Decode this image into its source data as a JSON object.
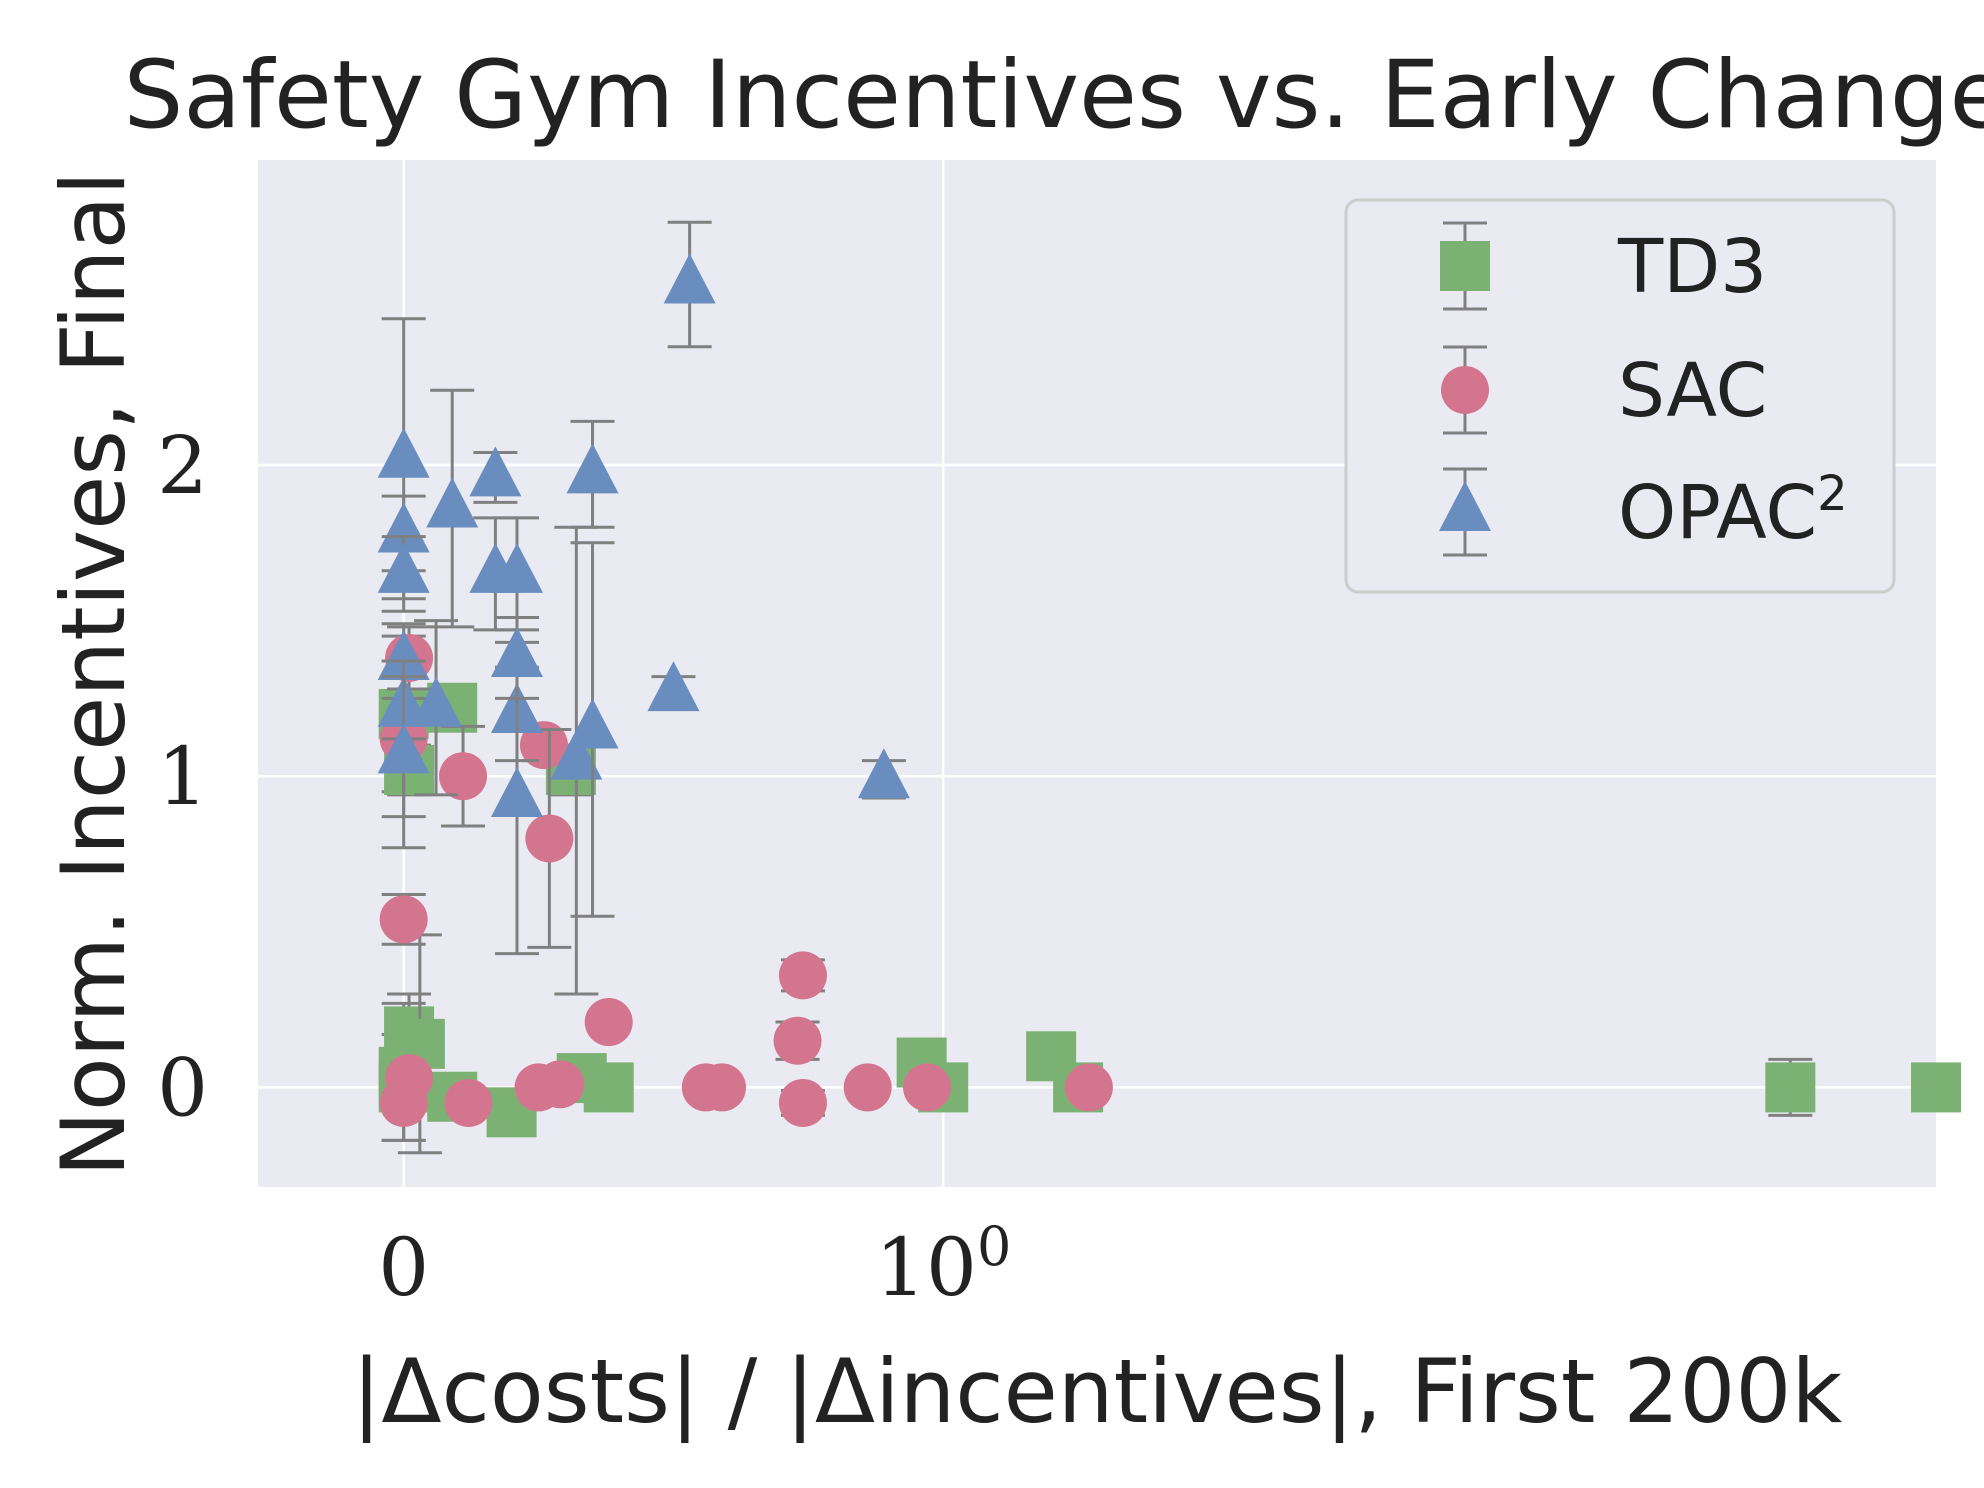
{
  "chart_data": {
    "type": "scatter",
    "title": "Safety Gym Incentives vs. Early Changes",
    "xlabel": "|Δcosts| / |Δincentives|, First 200k",
    "ylabel": "Norm. Incentives, Final",
    "xscale": "symlog",
    "xlim": [
      -0.27,
      2.84
    ],
    "ylim": [
      -0.32,
      2.98
    ],
    "x_ticks": [
      0,
      1
    ],
    "x_tick_labels": [
      "0",
      "10"
    ],
    "x_tick_superscripts": [
      "",
      "0"
    ],
    "y_ticks": [
      0,
      1,
      2
    ],
    "y_tick_labels": [
      "0",
      "1",
      "2"
    ],
    "grid": true,
    "legend": {
      "position": "top-right",
      "entries": [
        {
          "label": "TD3",
          "marker": "square",
          "color": "#7bb274"
        },
        {
          "label": "SAC",
          "marker": "circle",
          "color": "#d4758f"
        },
        {
          "label": "OPAC",
          "superscript": "2",
          "marker": "triangle",
          "color": "#6a8dbf"
        }
      ]
    },
    "colors": {
      "background": "#eaeaf2",
      "grid": "#ffffff",
      "errorbar": "#808080",
      "text": "#222222"
    },
    "series": [
      {
        "name": "TD3",
        "marker": "square",
        "color": "#7bb274",
        "points": [
          {
            "x": 0.0,
            "y": 0.0,
            "err": 0.17
          },
          {
            "x": 0.0,
            "y": 0.05,
            "err": 0.22
          },
          {
            "x": 0.01,
            "y": 0.18,
            "err": 0.12
          },
          {
            "x": 0.03,
            "y": 0.14,
            "err": 0.35
          },
          {
            "x": 0.0,
            "y": 1.2,
            "err": 0.25
          },
          {
            "x": 0.01,
            "y": 1.02,
            "err": 0.08
          },
          {
            "x": 0.09,
            "y": 1.22,
            "err": 0.05
          },
          {
            "x": 0.09,
            "y": -0.03,
            "err": 0.02
          },
          {
            "x": 0.2,
            "y": -0.08,
            "err": 0.04
          },
          {
            "x": 0.31,
            "y": 1.02,
            "err": 0.08
          },
          {
            "x": 0.33,
            "y": 0.03,
            "err": 0.04
          },
          {
            "x": 0.38,
            "y": 0.0,
            "err": 0.02
          },
          {
            "x": 0.96,
            "y": 0.08,
            "err": 0.03
          },
          {
            "x": 1.0,
            "y": 0.0,
            "err": 0.02
          },
          {
            "x": 1.2,
            "y": 0.1,
            "err": 0.07
          },
          {
            "x": 1.25,
            "y": 0.0,
            "err": 0.05
          },
          {
            "x": 2.57,
            "y": 0.0,
            "err": 0.09
          },
          {
            "x": 2.84,
            "y": 0.0,
            "err": 0.02
          }
        ]
      },
      {
        "name": "SAC",
        "marker": "circle",
        "color": "#d4758f",
        "points": [
          {
            "x": 0.0,
            "y": -0.05,
            "err": 0.02
          },
          {
            "x": 0.01,
            "y": 0.03,
            "err": 0.02
          },
          {
            "x": 0.0,
            "y": 0.54,
            "err": 0.08
          },
          {
            "x": 0.0,
            "y": 1.12,
            "err": 0.25
          },
          {
            "x": 0.01,
            "y": 1.38,
            "err": 0.1
          },
          {
            "x": 0.11,
            "y": 1.0,
            "err": 0.16
          },
          {
            "x": 0.12,
            "y": -0.05,
            "err": 0.03
          },
          {
            "x": 0.25,
            "y": 0.0,
            "err": 0.02
          },
          {
            "x": 0.26,
            "y": 1.1,
            "err": 0.05
          },
          {
            "x": 0.29,
            "y": 0.01,
            "err": 0.02
          },
          {
            "x": 0.27,
            "y": 0.8,
            "err": 0.35
          },
          {
            "x": 0.38,
            "y": 0.21,
            "err": 0.02
          },
          {
            "x": 0.56,
            "y": 0.0,
            "err": 0.02
          },
          {
            "x": 0.59,
            "y": 0.0,
            "err": 0.02
          },
          {
            "x": 0.73,
            "y": 0.15,
            "err": 0.06
          },
          {
            "x": 0.74,
            "y": 0.36,
            "err": 0.05
          },
          {
            "x": 0.74,
            "y": -0.05,
            "err": 0.04
          },
          {
            "x": 0.86,
            "y": 0.0,
            "err": 0.02
          },
          {
            "x": 0.97,
            "y": 0.0,
            "err": 0.02
          },
          {
            "x": 1.27,
            "y": 0.0,
            "err": 0.02
          }
        ]
      },
      {
        "name": "OPAC²",
        "marker": "triangle",
        "color": "#6a8dbf",
        "points": [
          {
            "x": 0.0,
            "y": 2.02,
            "err": 0.45
          },
          {
            "x": 0.0,
            "y": 1.78,
            "err": 0.12
          },
          {
            "x": 0.0,
            "y": 1.65,
            "err": 0.12
          },
          {
            "x": 0.0,
            "y": 1.37,
            "err": 0.12
          },
          {
            "x": 0.0,
            "y": 1.22,
            "err": 0.1
          },
          {
            "x": 0.0,
            "y": 1.07,
            "err": 0.3
          },
          {
            "x": 0.06,
            "y": 1.22,
            "err": 0.28
          },
          {
            "x": 0.09,
            "y": 1.86,
            "err": 0.38
          },
          {
            "x": 0.17,
            "y": 1.96,
            "err": 0.08
          },
          {
            "x": 0.17,
            "y": 1.65,
            "err": 0.18
          },
          {
            "x": 0.21,
            "y": 1.2,
            "err": 0.15
          },
          {
            "x": 0.21,
            "y": 0.93,
            "err": 0.5
          },
          {
            "x": 0.21,
            "y": 1.65,
            "err": 0.18
          },
          {
            "x": 0.21,
            "y": 1.38,
            "err": 0.13
          },
          {
            "x": 0.32,
            "y": 1.05,
            "err": 0.75
          },
          {
            "x": 0.35,
            "y": 1.97,
            "err": 0.17
          },
          {
            "x": 0.35,
            "y": 1.15,
            "err": 0.6
          },
          {
            "x": 0.5,
            "y": 1.27,
            "err": 0.05
          },
          {
            "x": 0.53,
            "y": 2.58,
            "err": 0.2
          },
          {
            "x": 0.89,
            "y": 0.99,
            "err": 0.06
          }
        ]
      }
    ]
  }
}
